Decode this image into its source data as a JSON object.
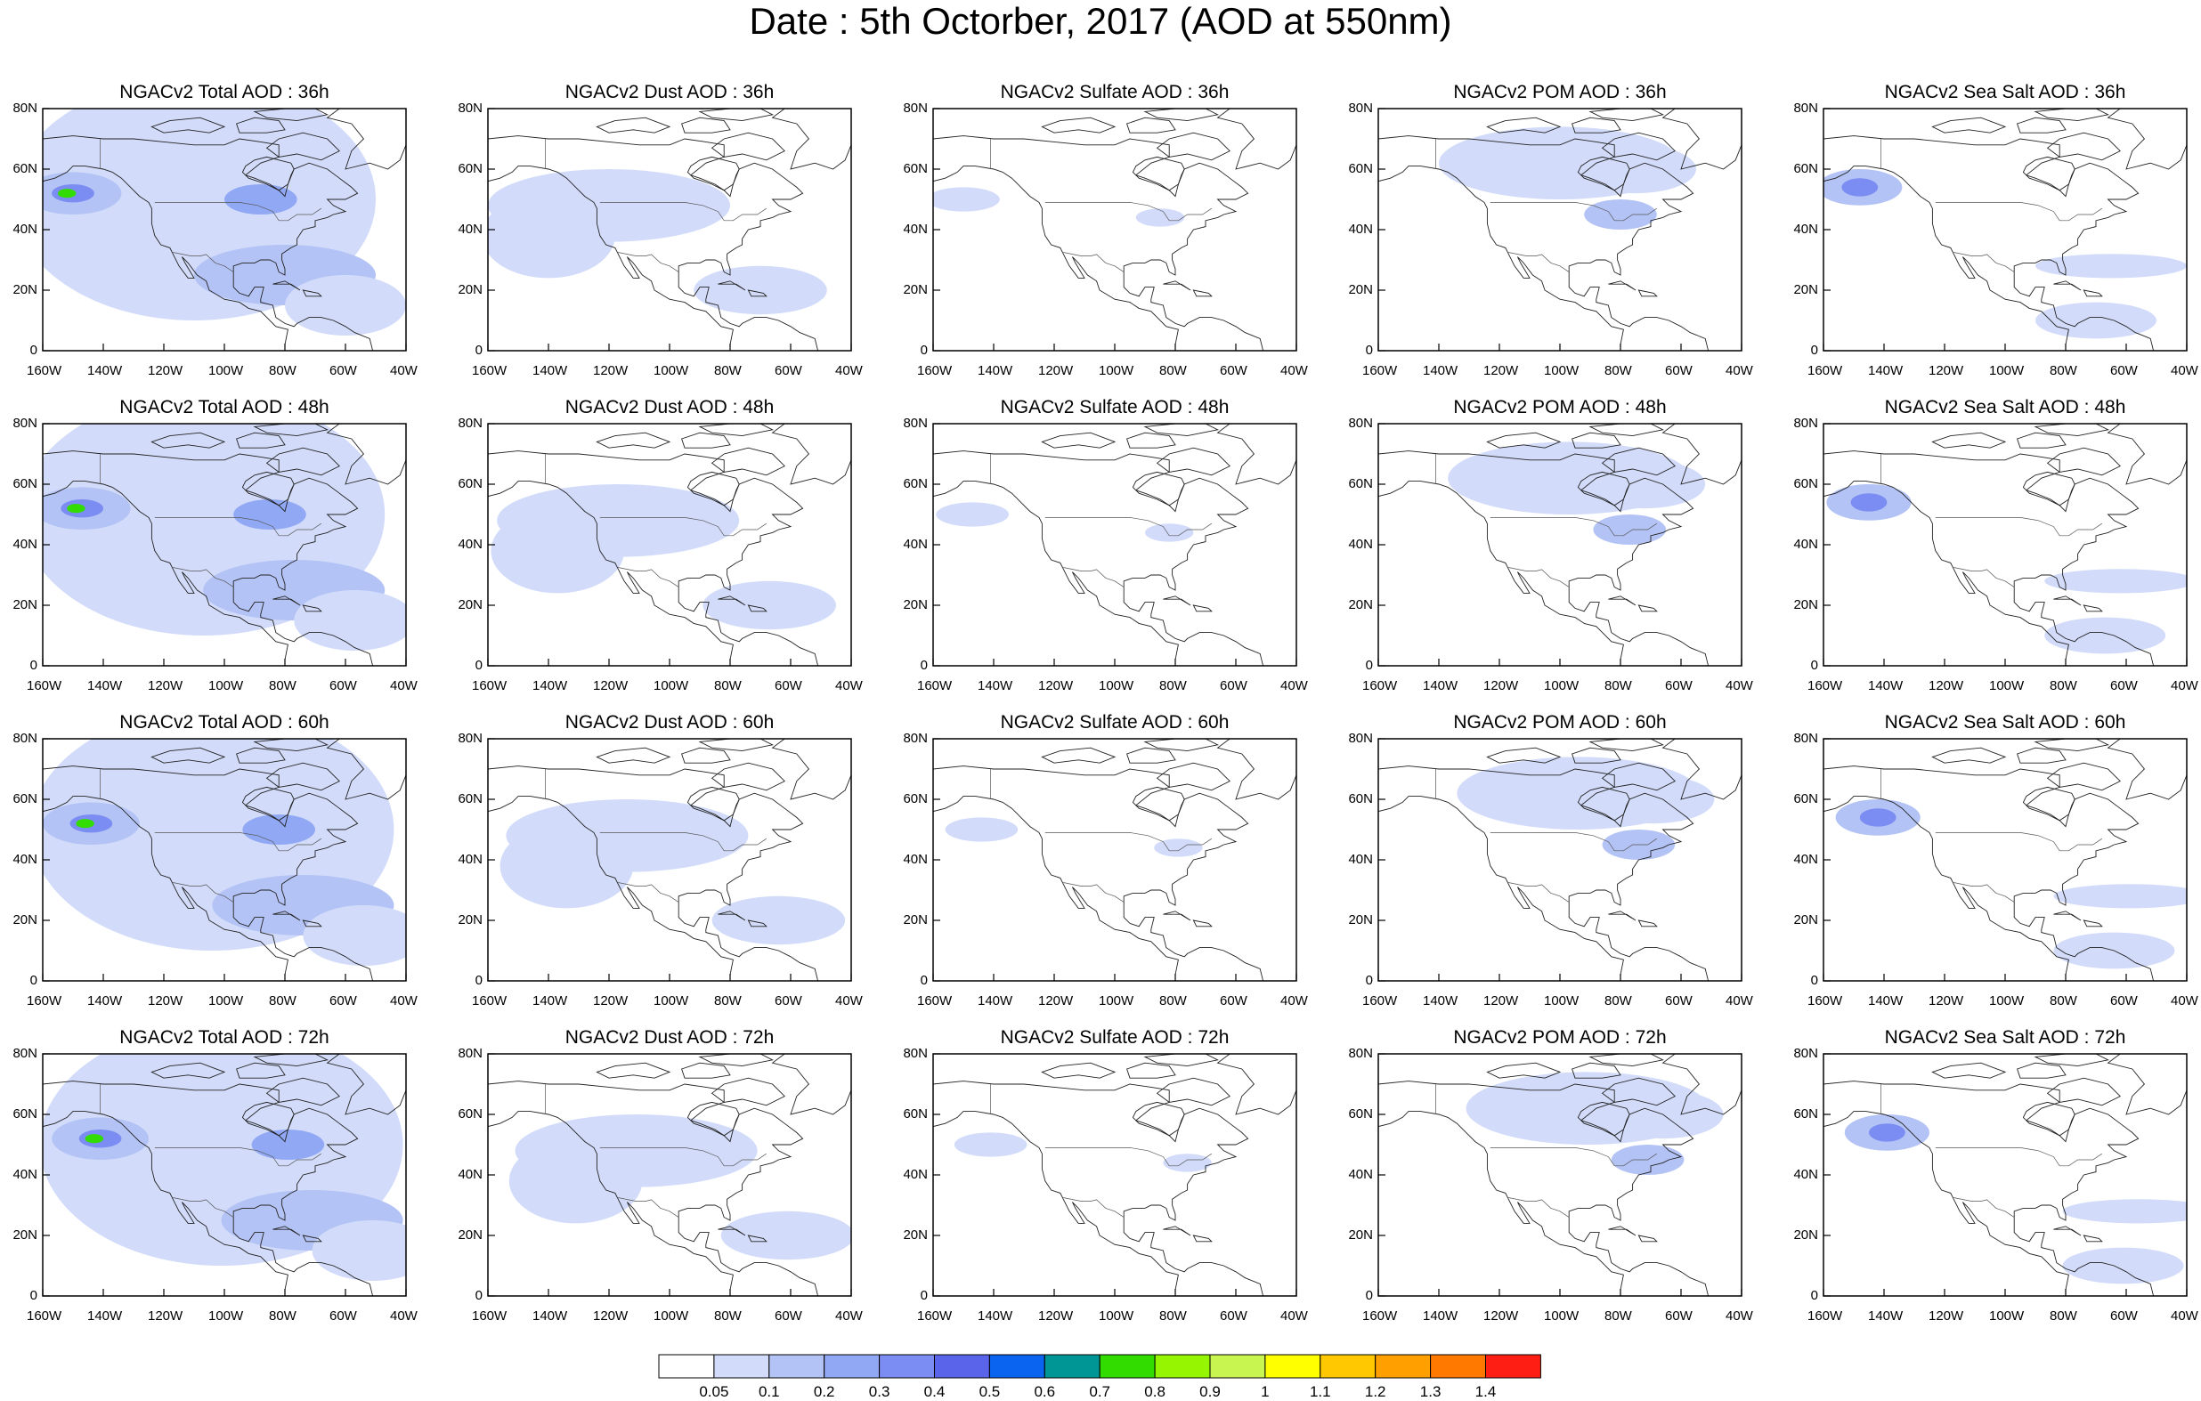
{
  "title": "Date : 5th Octorber, 2017 (AOD at 550nm)",
  "axes": {
    "lat_ticks": [
      "80N",
      "60N",
      "40N",
      "20N",
      "0"
    ],
    "lon_ticks": [
      "160W",
      "140W",
      "120W",
      "100W",
      "80W",
      "60W",
      "40W"
    ]
  },
  "panels": [
    {
      "title": "NGACv2 Total AOD : 36h",
      "species": "total",
      "lead": "36h"
    },
    {
      "title": "NGACv2 Dust AOD : 36h",
      "species": "dust",
      "lead": "36h"
    },
    {
      "title": "NGACv2 Sulfate AOD : 36h",
      "species": "sulfate",
      "lead": "36h"
    },
    {
      "title": "NGACv2 POM AOD : 36h",
      "species": "pom",
      "lead": "36h"
    },
    {
      "title": "NGACv2 Sea Salt AOD : 36h",
      "species": "seasalt",
      "lead": "36h"
    },
    {
      "title": "NGACv2 Total AOD : 48h",
      "species": "total",
      "lead": "48h"
    },
    {
      "title": "NGACv2 Dust AOD : 48h",
      "species": "dust",
      "lead": "48h"
    },
    {
      "title": "NGACv2 Sulfate AOD : 48h",
      "species": "sulfate",
      "lead": "48h"
    },
    {
      "title": "NGACv2 POM AOD : 48h",
      "species": "pom",
      "lead": "48h"
    },
    {
      "title": "NGACv2 Sea Salt AOD : 48h",
      "species": "seasalt",
      "lead": "48h"
    },
    {
      "title": "NGACv2 Total AOD : 60h",
      "species": "total",
      "lead": "60h"
    },
    {
      "title": "NGACv2 Dust AOD : 60h",
      "species": "dust",
      "lead": "60h"
    },
    {
      "title": "NGACv2 Sulfate AOD : 60h",
      "species": "sulfate",
      "lead": "60h"
    },
    {
      "title": "NGACv2 POM AOD : 60h",
      "species": "pom",
      "lead": "60h"
    },
    {
      "title": "NGACv2 Sea Salt AOD : 60h",
      "species": "seasalt",
      "lead": "60h"
    },
    {
      "title": "NGACv2 Total AOD : 72h",
      "species": "total",
      "lead": "72h"
    },
    {
      "title": "NGACv2 Dust AOD : 72h",
      "species": "dust",
      "lead": "72h"
    },
    {
      "title": "NGACv2 Sulfate AOD : 72h",
      "species": "sulfate",
      "lead": "72h"
    },
    {
      "title": "NGACv2 POM AOD : 72h",
      "species": "pom",
      "lead": "72h"
    },
    {
      "title": "NGACv2 Sea Salt  AOD : 72h",
      "species": "seasalt",
      "lead": "72h"
    }
  ],
  "colorbar": {
    "labels": [
      "0.05",
      "0.1",
      "0.2",
      "0.3",
      "0.4",
      "0.5",
      "0.6",
      "0.7",
      "0.8",
      "0.9",
      "1",
      "1.1",
      "1.2",
      "1.3",
      "1.4"
    ],
    "colors": [
      "#ffffff",
      "#d2dcfa",
      "#b4c3f5",
      "#91a8f5",
      "#7b8cf2",
      "#5a64eb",
      "#0a64f0",
      "#009696",
      "#32dc00",
      "#96f500",
      "#c8f550",
      "#ffff00",
      "#ffc800",
      "#ffa000",
      "#ff7800",
      "#ff1e14"
    ]
  }
}
